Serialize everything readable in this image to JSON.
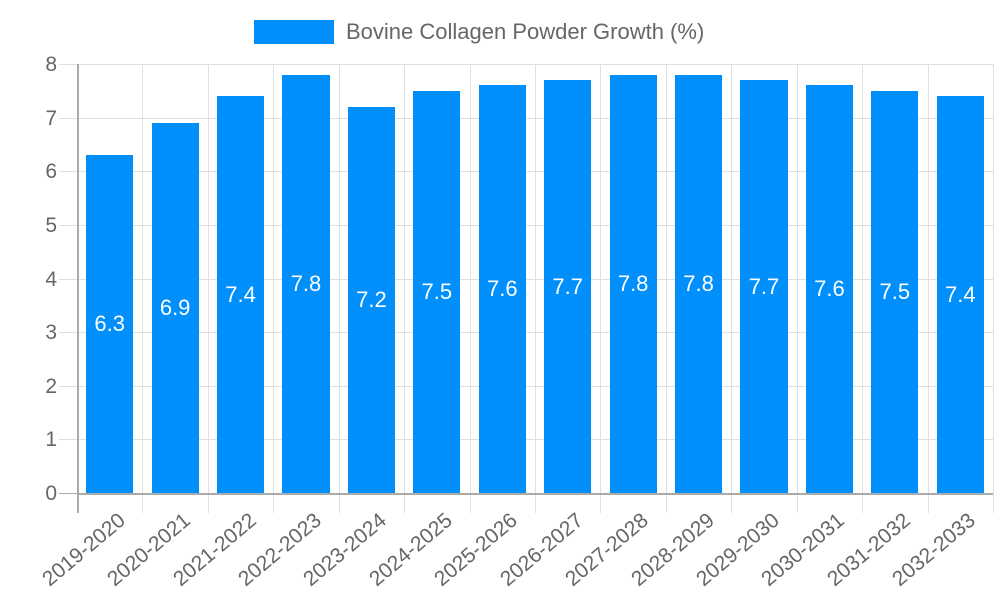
{
  "chart_data": {
    "type": "bar",
    "title": "",
    "xlabel": "",
    "ylabel": "",
    "ylim": [
      0,
      8
    ],
    "yticks": [
      0,
      1,
      2,
      3,
      4,
      5,
      6,
      7,
      8
    ],
    "grid": true,
    "legend_position": "top",
    "categories": [
      "2019-2020",
      "2020-2021",
      "2021-2022",
      "2022-2023",
      "2023-2024",
      "2024-2025",
      "2025-2026",
      "2026-2027",
      "2027-2028",
      "2028-2029",
      "2029-2030",
      "2030-2031",
      "2031-2032",
      "2032-2033"
    ],
    "series": [
      {
        "name": "Bovine Collagen Powder Growth (%)",
        "color": "#008ffb",
        "values": [
          6.3,
          6.9,
          7.4,
          7.8,
          7.2,
          7.5,
          7.6,
          7.7,
          7.8,
          7.8,
          7.7,
          7.6,
          7.5,
          7.4
        ],
        "data_labels": [
          "6.3",
          "6.9",
          "7.4",
          "7.8",
          "7.2",
          "7.5",
          "7.6",
          "7.7",
          "7.8",
          "7.8",
          "7.7",
          "7.6",
          "7.5",
          "7.4"
        ]
      }
    ]
  },
  "legend": {
    "label": "Bovine Collagen Powder Growth (%)",
    "color": "#008ffb"
  },
  "colors": {
    "bar": "#008ffb",
    "grid": "#e0e0e0",
    "axis": "#aaaaaa",
    "text": "#666666",
    "bar_label": "#ffffff"
  }
}
